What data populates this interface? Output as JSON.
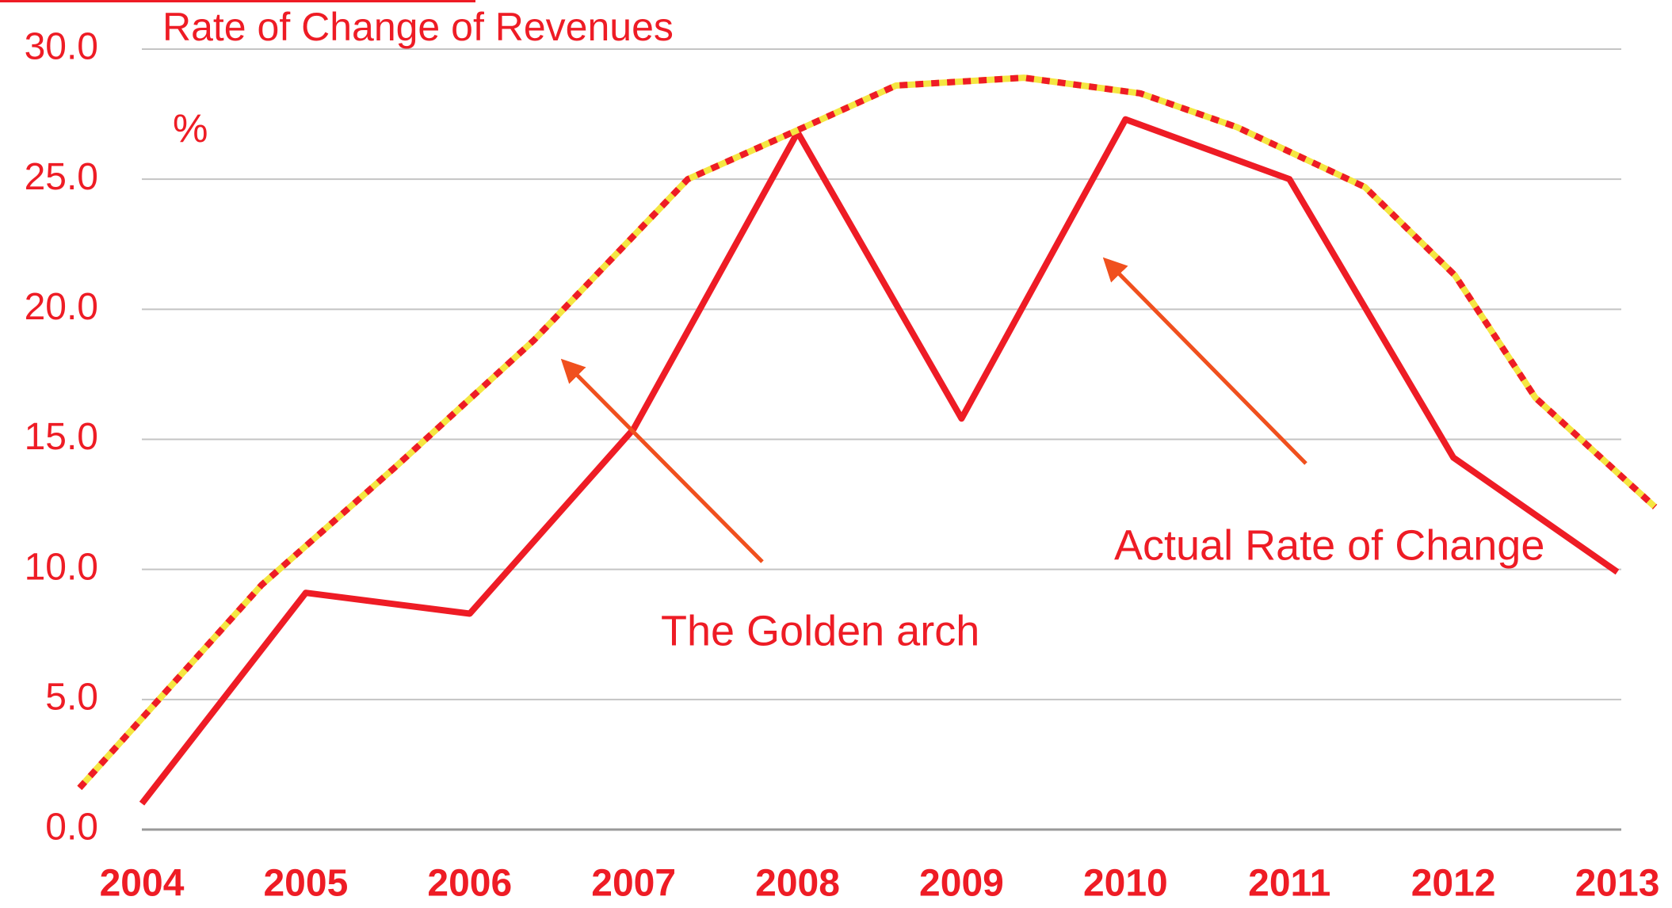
{
  "chart_data": {
    "type": "line",
    "title": "Rate of Change of Revenues",
    "y_unit_label": "%",
    "annotations": [
      "The Golden arch",
      "Actual Rate of Change"
    ],
    "xlim": [
      2004,
      2013
    ],
    "xticks": [
      2004,
      2005,
      2006,
      2007,
      2008,
      2009,
      2010,
      2011,
      2012,
      2013
    ],
    "ylim": [
      0,
      30
    ],
    "yticks": [
      {
        "value": 0,
        "label": "0.0"
      },
      {
        "value": 5,
        "label": "5.0"
      },
      {
        "value": 10,
        "label": "10.0"
      },
      {
        "value": 15,
        "label": "15.0"
      },
      {
        "value": 20,
        "label": "20.0"
      },
      {
        "value": 25,
        "label": "25.0"
      },
      {
        "value": 30,
        "label": "30.0"
      }
    ],
    "grid": true,
    "series": [
      {
        "name": "Actual Rate of Change",
        "color": "#ee1c25",
        "style": "solid",
        "x": [
          2004,
          2005,
          2006,
          2007,
          2008,
          2009,
          2010,
          2011,
          2012,
          2013
        ],
        "values": [
          1.0,
          9.1,
          8.3,
          15.4,
          26.8,
          15.8,
          27.3,
          25.0,
          14.3,
          9.9
        ]
      },
      {
        "name": "The Golden arch",
        "color": "#ee1c25",
        "dash_color": "#f5e642",
        "style": "dashed",
        "x": [
          2003.62,
          2004.73,
          2005.54,
          2006.39,
          2007.33,
          2008.04,
          2008.6,
          2009.38,
          2010.09,
          2010.68,
          2011.46,
          2012.01,
          2012.5,
          2013.23
        ],
        "values": [
          1.6,
          9.4,
          13.9,
          18.8,
          25.0,
          27.0,
          28.6,
          28.9,
          28.3,
          27.0,
          24.7,
          21.3,
          16.6,
          12.4
        ]
      }
    ]
  }
}
